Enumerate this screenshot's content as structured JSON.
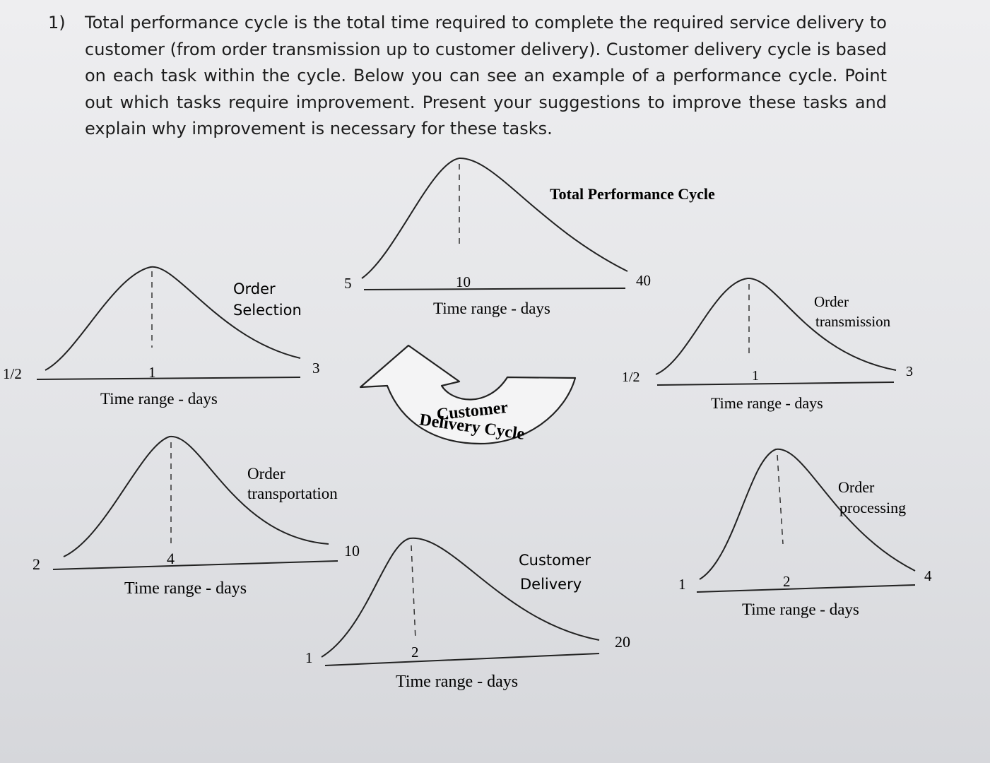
{
  "question": {
    "number": "1)",
    "text": "Total performance cycle is the total time required to complete the required service delivery to customer (from order transmission up to customer delivery). Customer delivery cycle is based on each task within the cycle. Below you can see an example of a performance cycle. Point out which tasks require improvement. Present your suggestions to improve these tasks and explain why improvement is necessary for these tasks."
  },
  "center": {
    "label_line1": "Customer",
    "label_line2": "Delivery Cycle"
  },
  "curves": [
    {
      "id": "total",
      "title": "Total Performance Cycle",
      "min": "5",
      "mode": "10",
      "max": "40",
      "axis_label": "Time range - days"
    },
    {
      "id": "selection",
      "title_line1": "Order",
      "title_line2": "Selection",
      "min": "1/2",
      "mode": "1",
      "max": "3",
      "axis_label": "Time range - days"
    },
    {
      "id": "transmission",
      "title_line1": "Order",
      "title_line2": "transmission",
      "min": "1/2",
      "mode": "1",
      "max": "3",
      "axis_label": "Time range - days"
    },
    {
      "id": "transportation",
      "title_line1": "Order",
      "title_line2": "transportation",
      "min": "2",
      "mode": "4",
      "max": "10",
      "axis_label": "Time range - days"
    },
    {
      "id": "processing",
      "title_line1": "Order",
      "title_line2": "processing",
      "min": "1",
      "mode": "2",
      "max": "4",
      "axis_label": "Time range - days"
    },
    {
      "id": "delivery",
      "title_line1": "Customer",
      "title_line2": "Delivery",
      "min": "1",
      "mode": "2",
      "max": "20",
      "axis_label": "Time range - days"
    }
  ]
}
